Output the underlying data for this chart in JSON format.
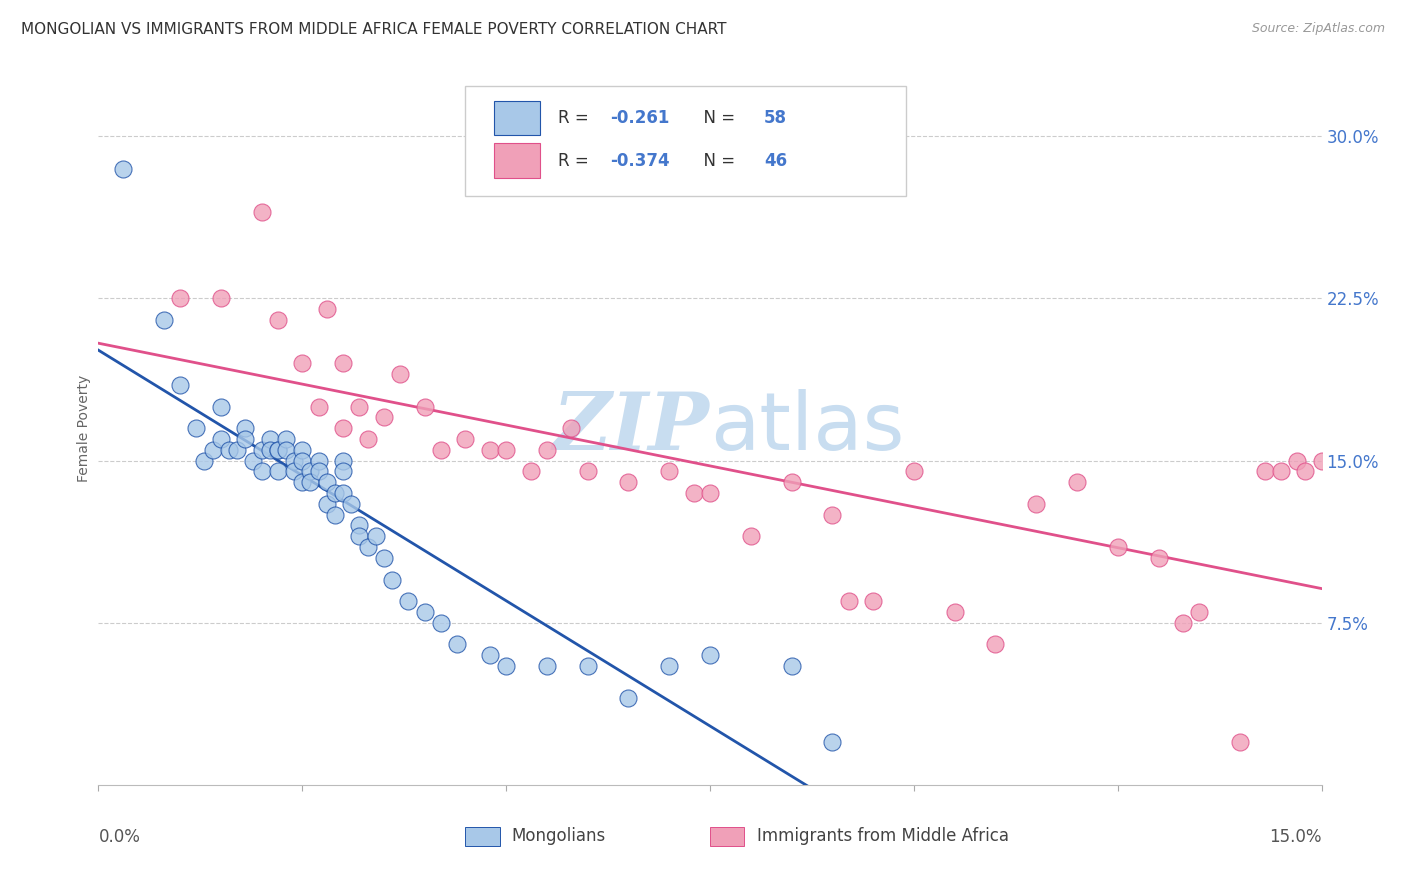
{
  "title": "MONGOLIAN VS IMMIGRANTS FROM MIDDLE AFRICA FEMALE POVERTY CORRELATION CHART",
  "source": "Source: ZipAtlas.com",
  "ylabel": "Female Poverty",
  "xlim": [
    0.0,
    0.15
  ],
  "ylim": [
    0.0,
    0.33
  ],
  "right_ytick_values": [
    0.075,
    0.15,
    0.225,
    0.3
  ],
  "right_ytick_labels": [
    "7.5%",
    "15.0%",
    "22.5%",
    "30.0%"
  ],
  "xtick_values": [
    0.0,
    0.025,
    0.05,
    0.075,
    0.1,
    0.125,
    0.15
  ],
  "blue_color": "#A8C8E8",
  "pink_color": "#F0A0B8",
  "trend_blue": "#2255AA",
  "trend_pink": "#E0508A",
  "watermark_color": "#C8DDF0",
  "legend_label1": "Mongolians",
  "legend_label2": "Immigrants from Middle Africa",
  "blue_R": "-0.261",
  "blue_N": "58",
  "pink_R": "-0.374",
  "pink_N": "46",
  "blue_scatter_x": [
    0.003,
    0.008,
    0.01,
    0.012,
    0.013,
    0.014,
    0.015,
    0.015,
    0.016,
    0.017,
    0.018,
    0.018,
    0.019,
    0.02,
    0.02,
    0.021,
    0.021,
    0.022,
    0.022,
    0.022,
    0.023,
    0.023,
    0.024,
    0.024,
    0.025,
    0.025,
    0.025,
    0.026,
    0.026,
    0.027,
    0.027,
    0.028,
    0.028,
    0.029,
    0.029,
    0.03,
    0.03,
    0.03,
    0.031,
    0.032,
    0.032,
    0.033,
    0.034,
    0.035,
    0.036,
    0.038,
    0.04,
    0.042,
    0.044,
    0.048,
    0.05,
    0.055,
    0.06,
    0.065,
    0.07,
    0.075,
    0.085,
    0.09
  ],
  "blue_scatter_y": [
    0.285,
    0.215,
    0.185,
    0.165,
    0.15,
    0.155,
    0.175,
    0.16,
    0.155,
    0.155,
    0.165,
    0.16,
    0.15,
    0.155,
    0.145,
    0.16,
    0.155,
    0.155,
    0.155,
    0.145,
    0.16,
    0.155,
    0.15,
    0.145,
    0.155,
    0.15,
    0.14,
    0.145,
    0.14,
    0.15,
    0.145,
    0.14,
    0.13,
    0.135,
    0.125,
    0.15,
    0.145,
    0.135,
    0.13,
    0.12,
    0.115,
    0.11,
    0.115,
    0.105,
    0.095,
    0.085,
    0.08,
    0.075,
    0.065,
    0.06,
    0.055,
    0.055,
    0.055,
    0.04,
    0.055,
    0.06,
    0.055,
    0.02
  ],
  "pink_scatter_x": [
    0.01,
    0.015,
    0.02,
    0.022,
    0.025,
    0.027,
    0.028,
    0.03,
    0.03,
    0.032,
    0.033,
    0.035,
    0.037,
    0.04,
    0.042,
    0.045,
    0.048,
    0.05,
    0.053,
    0.055,
    0.058,
    0.06,
    0.065,
    0.07,
    0.073,
    0.075,
    0.08,
    0.085,
    0.09,
    0.092,
    0.095,
    0.1,
    0.105,
    0.11,
    0.115,
    0.12,
    0.125,
    0.13,
    0.133,
    0.135,
    0.14,
    0.143,
    0.145,
    0.147,
    0.148,
    0.15
  ],
  "pink_scatter_y": [
    0.225,
    0.225,
    0.265,
    0.215,
    0.195,
    0.175,
    0.22,
    0.195,
    0.165,
    0.175,
    0.16,
    0.17,
    0.19,
    0.175,
    0.155,
    0.16,
    0.155,
    0.155,
    0.145,
    0.155,
    0.165,
    0.145,
    0.14,
    0.145,
    0.135,
    0.135,
    0.115,
    0.14,
    0.125,
    0.085,
    0.085,
    0.145,
    0.08,
    0.065,
    0.13,
    0.14,
    0.11,
    0.105,
    0.075,
    0.08,
    0.02,
    0.145,
    0.145,
    0.15,
    0.145,
    0.15
  ]
}
